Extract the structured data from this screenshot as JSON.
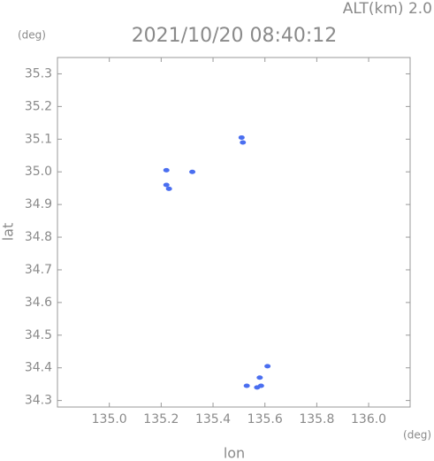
{
  "chart_data": {
    "type": "scatter",
    "title": "2021/10/20 08:40:12",
    "annotation": "ALT(km) 2.0",
    "y_unit": "(deg)",
    "x_unit": "(deg)",
    "xlabel": "lon",
    "ylabel": "lat",
    "xlim": [
      134.8,
      136.16
    ],
    "ylim": [
      34.28,
      35.35
    ],
    "xticks": [
      {
        "value": 135,
        "label": "135.0"
      },
      {
        "value": 135.2,
        "label": "135.2"
      },
      {
        "value": 135.4,
        "label": "135.4"
      },
      {
        "value": 135.6,
        "label": "135.6"
      },
      {
        "value": 135.8,
        "label": "135.8"
      },
      {
        "value": 136,
        "label": "136.0"
      }
    ],
    "yticks": [
      34.3,
      34.4,
      34.5,
      34.6,
      34.7,
      34.8,
      34.9,
      {
        "value": 35,
        "label": "35.0"
      },
      35.1,
      35.2,
      35.3
    ],
    "series": [
      {
        "color": "#4a6ef0",
        "x": [
          135.51,
          135.515,
          135.22,
          135.32,
          135.22,
          135.23,
          135.61,
          135.58,
          135.57,
          135.585,
          135.53
        ],
        "y": [
          35.105,
          35.09,
          35.005,
          35.0,
          34.96,
          34.948,
          34.405,
          34.37,
          34.34,
          34.345,
          34.345
        ]
      }
    ]
  }
}
